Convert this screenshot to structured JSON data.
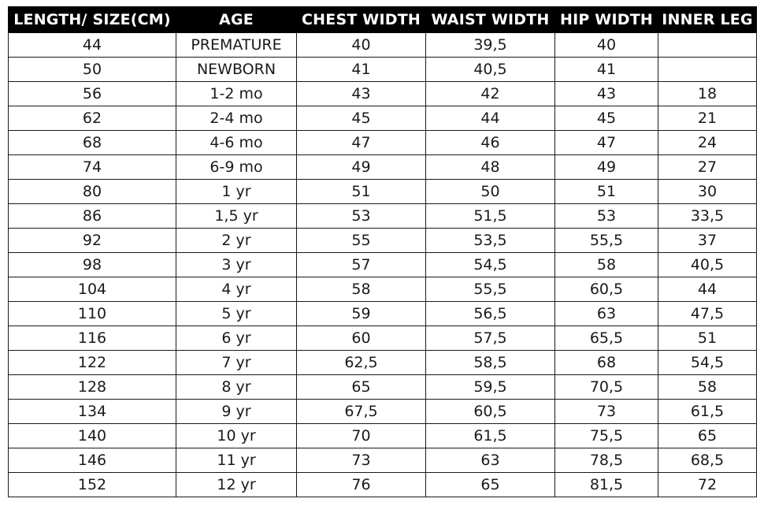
{
  "table": {
    "headers": [
      "LENGTH/ SIZE(CM)",
      "AGE",
      "CHEST WIDTH",
      "WAIST WIDTH",
      "HIP WIDTH",
      "INNER LEG"
    ],
    "rows": [
      [
        "44",
        "PREMATURE",
        "40",
        "39,5",
        "40",
        ""
      ],
      [
        "50",
        "NEWBORN",
        "41",
        "40,5",
        "41",
        ""
      ],
      [
        "56",
        "1-2 mo",
        "43",
        "42",
        "43",
        "18"
      ],
      [
        "62",
        "2-4 mo",
        "45",
        "44",
        "45",
        "21"
      ],
      [
        "68",
        "4-6 mo",
        "47",
        "46",
        "47",
        "24"
      ],
      [
        "74",
        "6-9 mo",
        "49",
        "48",
        "49",
        "27"
      ],
      [
        "80",
        "1 yr",
        "51",
        "50",
        "51",
        "30"
      ],
      [
        "86",
        "1,5 yr",
        "53",
        "51,5",
        "53",
        "33,5"
      ],
      [
        "92",
        "2 yr",
        "55",
        "53,5",
        "55,5",
        "37"
      ],
      [
        "98",
        "3 yr",
        "57",
        "54,5",
        "58",
        "40,5"
      ],
      [
        "104",
        "4 yr",
        "58",
        "55,5",
        "60,5",
        "44"
      ],
      [
        "110",
        "5 yr",
        "59",
        "56,5",
        "63",
        "47,5"
      ],
      [
        "116",
        "6 yr",
        "60",
        "57,5",
        "65,5",
        "51"
      ],
      [
        "122",
        "7 yr",
        "62,5",
        "58,5",
        "68",
        "54,5"
      ],
      [
        "128",
        "8 yr",
        "65",
        "59,5",
        "70,5",
        "58"
      ],
      [
        "134",
        "9 yr",
        "67,5",
        "60,5",
        "73",
        "61,5"
      ],
      [
        "140",
        "10 yr",
        "70",
        "61,5",
        "75,5",
        "65"
      ],
      [
        "146",
        "11 yr",
        "73",
        "63",
        "78,5",
        "68,5"
      ],
      [
        "152",
        "12 yr",
        "76",
        "65",
        "81,5",
        "72"
      ]
    ]
  },
  "colors": {
    "header_background": "#000000",
    "header_text": "#ffffff",
    "cell_text": "#1a1a1a",
    "grid_line": "#1a1a1a"
  }
}
